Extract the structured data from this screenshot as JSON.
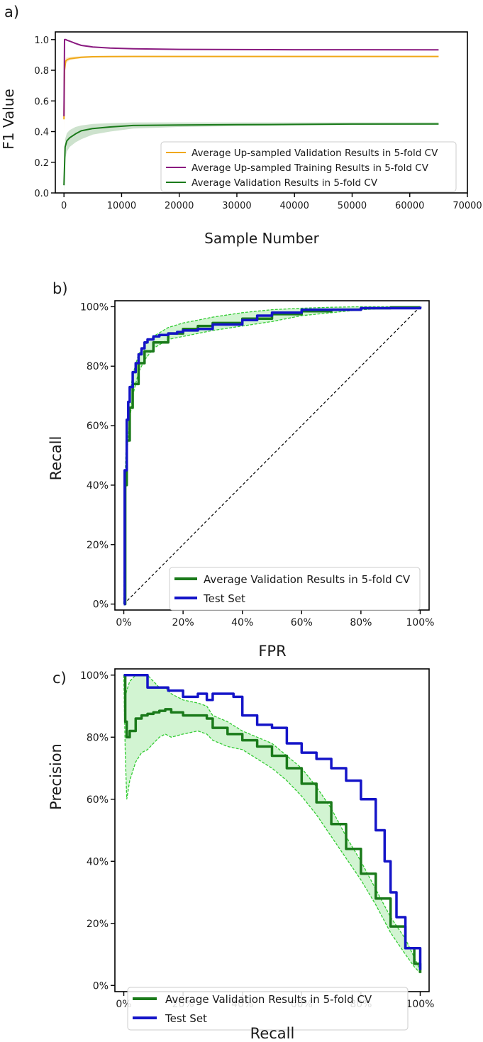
{
  "panel_labels": [
    "a)",
    "b)",
    "c)"
  ],
  "colors": {
    "orange": "#f0a818",
    "purple": "#8a1a80",
    "green": "#1a7a1a",
    "light_green": "#33cc33",
    "blue": "#1414c8",
    "black": "#000000"
  },
  "chart_data": [
    {
      "type": "line",
      "panel": "a)",
      "xlabel": "Sample Number",
      "ylabel": "F1 Value",
      "xlim": [
        -1500,
        70000
      ],
      "ylim": [
        0.0,
        1.05
      ],
      "xticks": [
        0,
        10000,
        20000,
        30000,
        40000,
        50000,
        60000,
        70000
      ],
      "xtick_labels": [
        "0",
        "10000",
        "20000",
        "30000",
        "40000",
        "50000",
        "60000",
        "70000"
      ],
      "yticks": [
        0.0,
        0.2,
        0.4,
        0.6,
        0.8,
        1.0
      ],
      "ytick_labels": [
        "0.0",
        "0.2",
        "0.4",
        "0.6",
        "0.8",
        "1.0"
      ],
      "grid": false,
      "legend_position": "lower-right",
      "series": [
        {
          "name": "Average Up-sampled Validation Results in 5-fold CV",
          "color_key": "orange",
          "x": [
            0,
            100,
            300,
            600,
            1000,
            2000,
            3000,
            5000,
            8000,
            12000,
            20000,
            30000,
            40000,
            50000,
            65000
          ],
          "y": [
            0.48,
            0.8,
            0.86,
            0.87,
            0.875,
            0.88,
            0.885,
            0.888,
            0.889,
            0.89,
            0.89,
            0.89,
            0.89,
            0.89,
            0.89
          ],
          "band_lower": [
            0.4,
            0.76,
            0.84,
            0.855,
            0.865,
            0.872,
            0.878,
            0.883,
            0.885,
            0.886,
            0.887,
            0.887,
            0.887,
            0.887,
            0.887
          ],
          "band_upper": [
            0.5,
            0.84,
            0.88,
            0.885,
            0.888,
            0.89,
            0.892,
            0.894,
            0.894,
            0.894,
            0.893,
            0.893,
            0.893,
            0.893,
            0.893
          ]
        },
        {
          "name": "Average Up-sampled Training Results in 5-fold CV",
          "color_key": "purple",
          "x": [
            0,
            100,
            300,
            600,
            1000,
            2000,
            3000,
            5000,
            8000,
            12000,
            20000,
            30000,
            40000,
            50000,
            65000
          ],
          "y": [
            0.5,
            1.0,
            1.0,
            0.995,
            0.99,
            0.975,
            0.962,
            0.952,
            0.945,
            0.94,
            0.936,
            0.935,
            0.934,
            0.934,
            0.933
          ]
        },
        {
          "name": "Average Validation Results in 5-fold CV",
          "color_key": "green",
          "x": [
            0,
            200,
            500,
            1000,
            2000,
            3000,
            5000,
            8000,
            12000,
            20000,
            30000,
            40000,
            50000,
            65000
          ],
          "y": [
            0.05,
            0.3,
            0.34,
            0.36,
            0.385,
            0.405,
            0.42,
            0.43,
            0.44,
            0.443,
            0.445,
            0.447,
            0.449,
            0.45
          ],
          "band_lower": [
            0.0,
            0.22,
            0.27,
            0.3,
            0.33,
            0.35,
            0.38,
            0.4,
            0.42,
            0.43,
            0.436,
            0.44,
            0.442,
            0.444
          ],
          "band_upper": [
            0.1,
            0.35,
            0.39,
            0.41,
            0.43,
            0.44,
            0.45,
            0.455,
            0.46,
            0.46,
            0.46,
            0.46,
            0.46,
            0.46
          ]
        }
      ]
    },
    {
      "type": "line",
      "panel": "b)",
      "xlabel": "FPR",
      "ylabel": "Recall",
      "xlim": [
        -0.03,
        1.03
      ],
      "ylim": [
        -0.02,
        1.02
      ],
      "xticks": [
        0,
        0.2,
        0.4,
        0.6,
        0.8,
        1.0
      ],
      "xtick_labels": [
        "0%",
        "20%",
        "40%",
        "60%",
        "80%",
        "100%"
      ],
      "yticks": [
        0,
        0.2,
        0.4,
        0.6,
        0.8,
        1.0
      ],
      "ytick_labels": [
        "0%",
        "20%",
        "40%",
        "60%",
        "80%",
        "100%"
      ],
      "grid": false,
      "legend_position": "lower-right",
      "diagonal": true,
      "series": [
        {
          "name": "Average Validation Results in 5-fold CV",
          "color_key": "green",
          "x": [
            0,
            0.005,
            0.01,
            0.02,
            0.03,
            0.05,
            0.07,
            0.1,
            0.15,
            0.2,
            0.25,
            0.3,
            0.4,
            0.5,
            0.6,
            0.7,
            0.8,
            0.9,
            1.0
          ],
          "y": [
            0,
            0.4,
            0.55,
            0.66,
            0.74,
            0.81,
            0.85,
            0.88,
            0.91,
            0.925,
            0.935,
            0.945,
            0.96,
            0.975,
            0.985,
            0.99,
            0.995,
            0.998,
            1.0
          ],
          "band_lower": [
            0,
            0.36,
            0.5,
            0.62,
            0.7,
            0.78,
            0.82,
            0.86,
            0.89,
            0.9,
            0.91,
            0.92,
            0.935,
            0.95,
            0.97,
            0.98,
            0.99,
            0.995,
            1.0
          ],
          "band_upper": [
            0,
            0.44,
            0.6,
            0.7,
            0.77,
            0.84,
            0.87,
            0.9,
            0.93,
            0.945,
            0.955,
            0.965,
            0.98,
            0.99,
            0.995,
            0.998,
            1.0,
            1.0,
            1.0
          ]
        },
        {
          "name": "Test Set",
          "color_key": "blue",
          "x": [
            0,
            0.003,
            0.01,
            0.015,
            0.02,
            0.03,
            0.04,
            0.05,
            0.06,
            0.07,
            0.08,
            0.1,
            0.12,
            0.15,
            0.18,
            0.2,
            0.25,
            0.3,
            0.4,
            0.45,
            0.5,
            0.6,
            0.8,
            1.0
          ],
          "y": [
            0,
            0.45,
            0.62,
            0.68,
            0.73,
            0.78,
            0.81,
            0.84,
            0.86,
            0.88,
            0.89,
            0.9,
            0.905,
            0.91,
            0.915,
            0.92,
            0.925,
            0.94,
            0.955,
            0.97,
            0.98,
            0.99,
            0.995,
            1.0
          ]
        }
      ]
    },
    {
      "type": "line",
      "panel": "c)",
      "xlabel": "Recall",
      "ylabel": "Precision",
      "xlim": [
        -0.03,
        1.03
      ],
      "ylim": [
        -0.02,
        1.02
      ],
      "xticks": [
        0,
        0.2,
        0.4,
        0.6,
        0.8,
        1.0
      ],
      "xtick_labels": [
        "0%",
        "20%",
        "40%",
        "60%",
        "80%",
        "100%"
      ],
      "yticks": [
        0,
        0.2,
        0.4,
        0.6,
        0.8,
        1.0
      ],
      "ytick_labels": [
        "0%",
        "20%",
        "40%",
        "60%",
        "80%",
        "100%"
      ],
      "grid": false,
      "legend_position": "lower-left",
      "series": [
        {
          "name": "Average Validation Results in 5-fold CV",
          "color_key": "green",
          "x": [
            0,
            0.005,
            0.01,
            0.02,
            0.04,
            0.06,
            0.08,
            0.1,
            0.12,
            0.14,
            0.16,
            0.2,
            0.25,
            0.28,
            0.3,
            0.35,
            0.4,
            0.45,
            0.5,
            0.55,
            0.6,
            0.65,
            0.7,
            0.75,
            0.8,
            0.85,
            0.9,
            0.95,
            0.98,
            1.0
          ],
          "y": [
            1.0,
            0.85,
            0.8,
            0.82,
            0.86,
            0.87,
            0.875,
            0.88,
            0.885,
            0.89,
            0.88,
            0.87,
            0.87,
            0.86,
            0.83,
            0.81,
            0.79,
            0.77,
            0.74,
            0.7,
            0.65,
            0.59,
            0.52,
            0.44,
            0.36,
            0.28,
            0.19,
            0.12,
            0.07,
            0.04
          ],
          "band_lower": [
            1.0,
            0.75,
            0.6,
            0.66,
            0.72,
            0.75,
            0.76,
            0.78,
            0.8,
            0.81,
            0.8,
            0.81,
            0.82,
            0.81,
            0.79,
            0.77,
            0.76,
            0.73,
            0.7,
            0.66,
            0.61,
            0.55,
            0.48,
            0.41,
            0.34,
            0.26,
            0.17,
            0.1,
            0.06,
            0.04
          ],
          "band_upper": [
            1.0,
            0.93,
            0.95,
            0.98,
            1.0,
            1.0,
            1.0,
            0.98,
            0.96,
            0.96,
            0.94,
            0.92,
            0.91,
            0.9,
            0.87,
            0.85,
            0.82,
            0.8,
            0.78,
            0.74,
            0.7,
            0.64,
            0.57,
            0.48,
            0.4,
            0.31,
            0.22,
            0.15,
            0.09,
            0.05
          ]
        },
        {
          "name": "Test Set",
          "color_key": "blue",
          "x": [
            0,
            0.08,
            0.08,
            0.15,
            0.2,
            0.25,
            0.28,
            0.3,
            0.35,
            0.37,
            0.4,
            0.45,
            0.5,
            0.55,
            0.6,
            0.65,
            0.7,
            0.75,
            0.8,
            0.85,
            0.88,
            0.9,
            0.92,
            0.95,
            1.0
          ],
          "y": [
            1.0,
            1.0,
            0.96,
            0.95,
            0.93,
            0.94,
            0.92,
            0.94,
            0.94,
            0.93,
            0.87,
            0.84,
            0.83,
            0.78,
            0.75,
            0.73,
            0.7,
            0.66,
            0.6,
            0.5,
            0.4,
            0.3,
            0.22,
            0.12,
            0.05
          ]
        }
      ]
    }
  ]
}
